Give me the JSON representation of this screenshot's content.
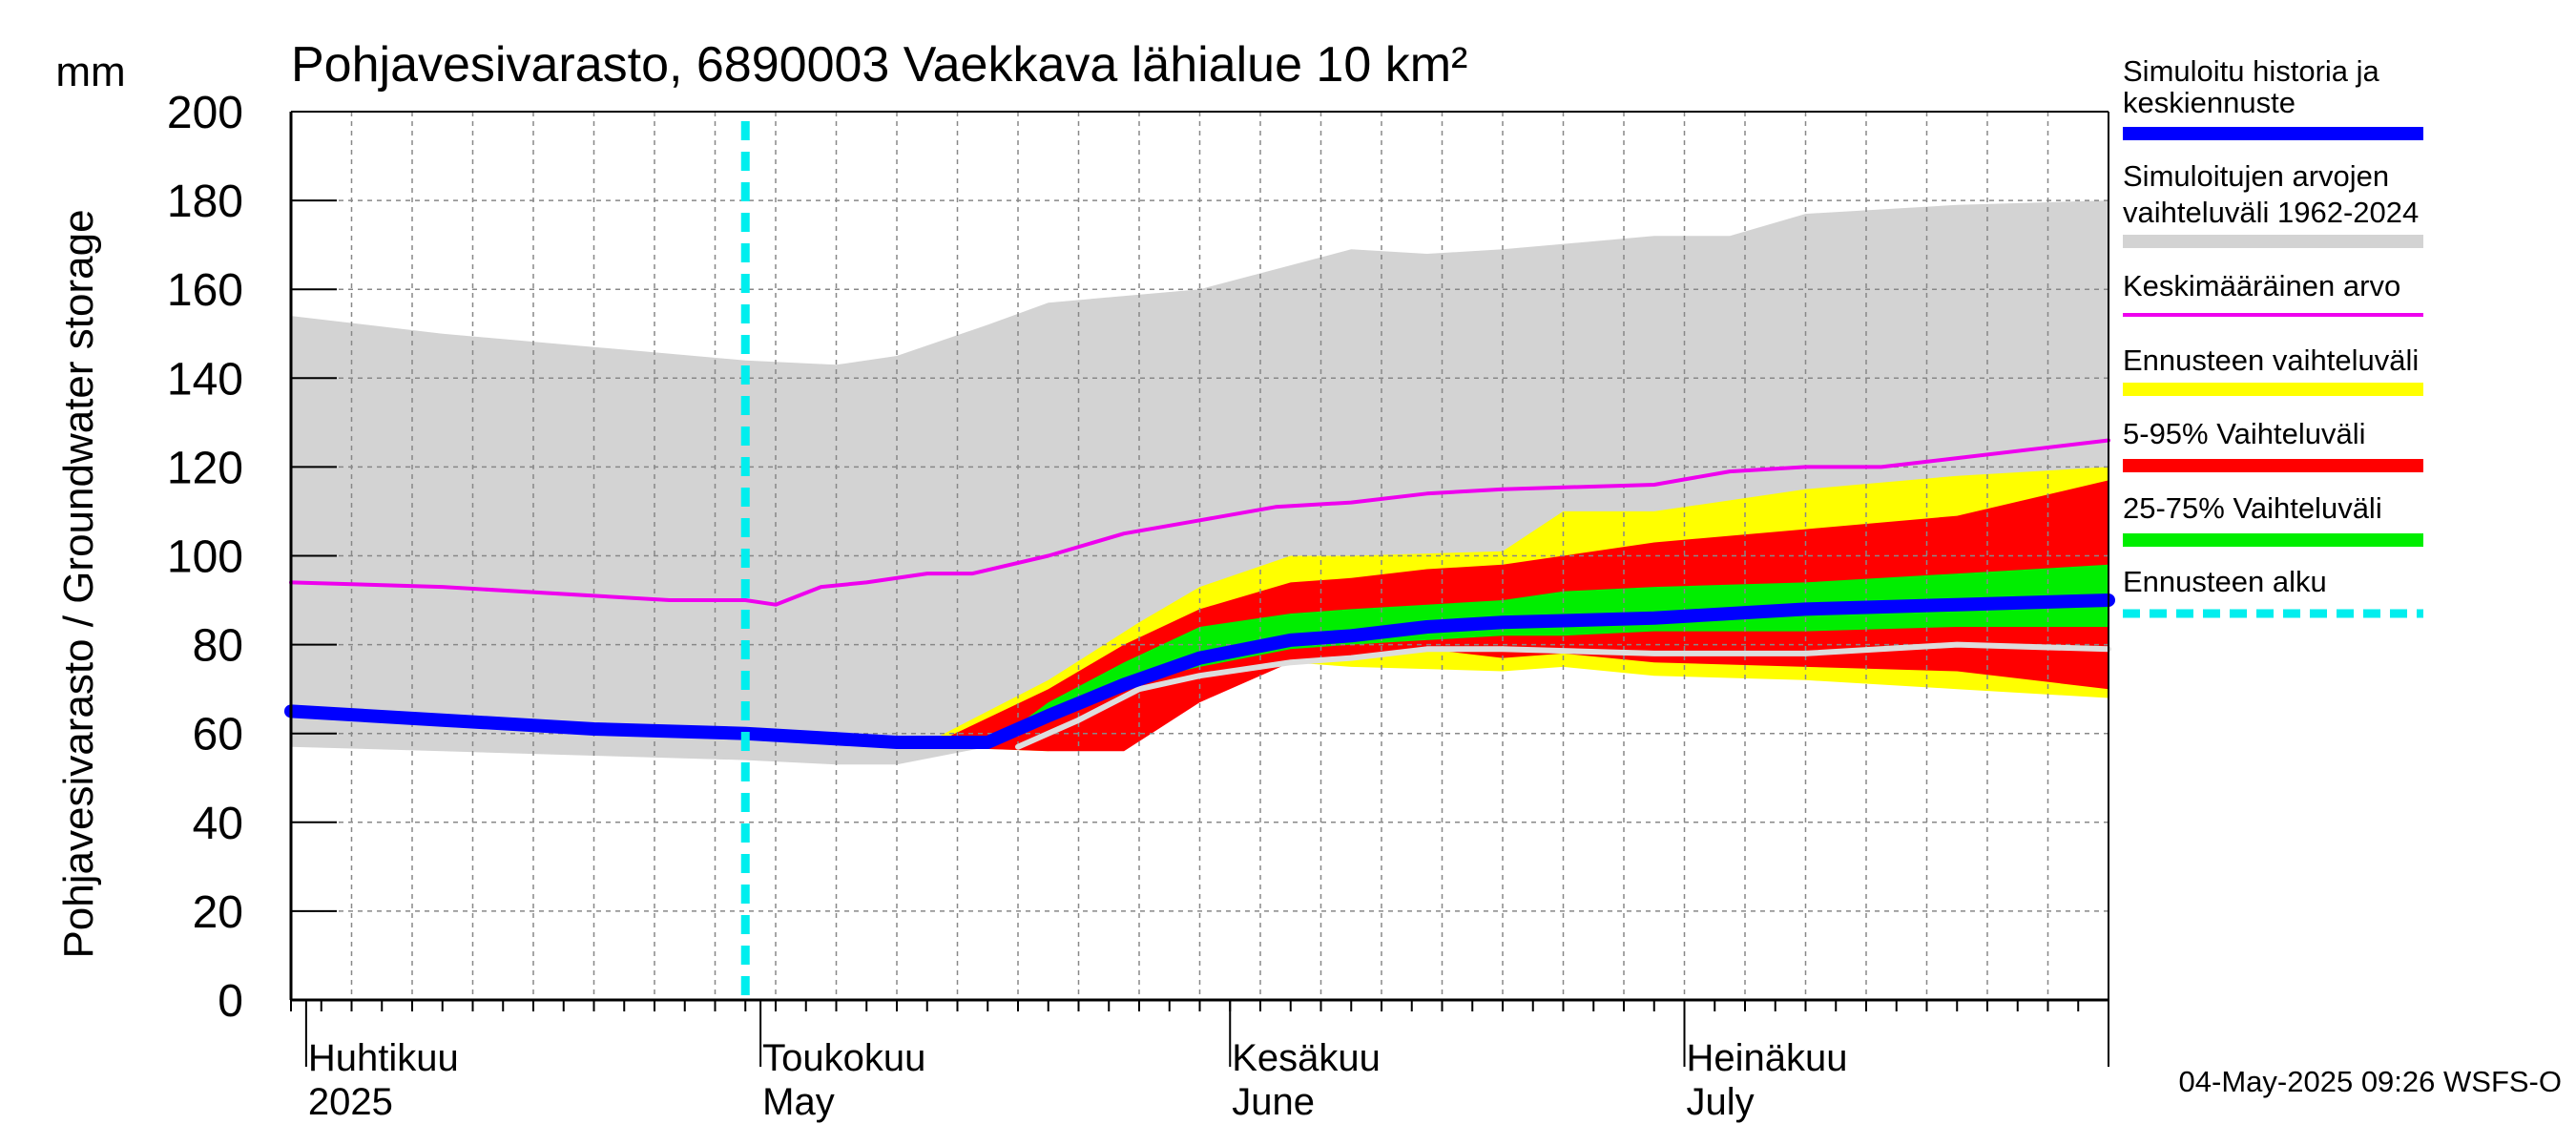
{
  "chart_data": {
    "type": "area",
    "title": "Pohjavesivarasto, 6890003 Vaekkava lähialue 10 km²",
    "unit_label": "mm",
    "ylabel": "Pohjavesivarasto / Groundwater storage",
    "ylim": [
      0,
      200
    ],
    "y_ticks": [
      "0",
      "20",
      "40",
      "60",
      "80",
      "100",
      "120",
      "140",
      "160",
      "180",
      "200"
    ],
    "x_range_days": [
      0,
      120
    ],
    "x_axis_note": "day 0 = 2025-03-31, day 120 = 2025-07-29",
    "months": [
      {
        "label_fi": "Huhtikuu",
        "label_en": "2025",
        "day": 1
      },
      {
        "label_fi": "Toukokuu",
        "label_en": "May",
        "day": 31
      },
      {
        "label_fi": "Kesäkuu",
        "label_en": "June",
        "day": 62
      },
      {
        "label_fi": "Heinäkuu",
        "label_en": "July",
        "day": 92
      }
    ],
    "forecast_start_day": 30,
    "series": [
      {
        "name": "Simuloitujen arvojen vaihteluväli 1962-2024",
        "kind": "band",
        "color": "#d3d3d3",
        "x": [
          0,
          10,
          20,
          30,
          36,
          40,
          46,
          50,
          60,
          70,
          75,
          80,
          90,
          95,
          100,
          110,
          120
        ],
        "lower": [
          57,
          56,
          55,
          54,
          53,
          53,
          57,
          68,
          76,
          77,
          78,
          78,
          77,
          77,
          77,
          76,
          75
        ],
        "upper": [
          154,
          150,
          147,
          144,
          143,
          145,
          152,
          157,
          160,
          169,
          168,
          169,
          172,
          172,
          177,
          179,
          180
        ]
      },
      {
        "name": "Ennusteen vaihteluväli",
        "kind": "band",
        "color": "#ffff00",
        "x": [
          42,
          50,
          56,
          60,
          66,
          70,
          80,
          84,
          90,
          100,
          110,
          120
        ],
        "lower": [
          57,
          56,
          65,
          72,
          76,
          75,
          74,
          75,
          73,
          72,
          70,
          68
        ],
        "upper": [
          58,
          72,
          85,
          93,
          100,
          100,
          101,
          110,
          110,
          115,
          118,
          120
        ]
      },
      {
        "name": "5-95% Vaihteluväli",
        "kind": "band",
        "color": "#ff0000",
        "x": [
          42,
          50,
          55,
          60,
          66,
          70,
          75,
          80,
          84,
          90,
          100,
          110,
          120
        ],
        "lower": [
          57,
          56,
          56,
          67,
          76,
          77,
          79,
          77,
          78,
          76,
          75,
          74,
          70
        ],
        "upper": [
          57,
          70,
          80,
          88,
          94,
          95,
          97,
          98,
          100,
          103,
          106,
          109,
          117
        ]
      },
      {
        "name": "25-75% Vaihteluväli",
        "kind": "band",
        "color": "#00ee00",
        "x": [
          46,
          50,
          55,
          60,
          66,
          70,
          75,
          80,
          84,
          90,
          100,
          110,
          120
        ],
        "lower": [
          57,
          63,
          71,
          75,
          79,
          80,
          81,
          82,
          82,
          83,
          83,
          84,
          84
        ],
        "upper": [
          57,
          67,
          76,
          84,
          87,
          88,
          89,
          90,
          92,
          93,
          94,
          96,
          98
        ]
      },
      {
        "name": "Keskimääräinen arvo",
        "kind": "line",
        "color": "#ee00ee",
        "x": [
          0,
          10,
          20,
          25,
          30,
          32,
          35,
          38,
          42,
          45,
          50,
          55,
          60,
          65,
          70,
          75,
          80,
          90,
          95,
          100,
          105,
          110,
          115,
          120
        ],
        "values": [
          94,
          93,
          91,
          90,
          90,
          89,
          93,
          94,
          96,
          96,
          100,
          105,
          108,
          111,
          112,
          114,
          115,
          116,
          119,
          120,
          120,
          122,
          124,
          126
        ]
      },
      {
        "name": "Median (white)",
        "kind": "line",
        "color": "#dddddd",
        "x": [
          48,
          52,
          56,
          60,
          66,
          70,
          75,
          80,
          90,
          100,
          110,
          120
        ],
        "values": [
          57,
          63,
          70,
          73,
          76,
          77,
          79,
          79,
          78,
          78,
          80,
          79
        ]
      },
      {
        "name": "Simuloitu historia ja keskiennuste",
        "kind": "line",
        "color": "#0000ff",
        "x": [
          0,
          10,
          20,
          30,
          40,
          46,
          50,
          55,
          60,
          66,
          70,
          75,
          80,
          90,
          100,
          110,
          120
        ],
        "values": [
          65,
          63,
          61,
          60,
          58,
          58,
          64,
          71,
          77,
          81,
          82,
          84,
          85,
          86,
          88,
          89,
          90
        ]
      }
    ]
  },
  "legend": {
    "items": [
      {
        "label": "Simuloitu historia ja keskiennuste",
        "line1": "Simuloitu historia ja",
        "line2": "keskiennuste",
        "color": "#0000ff",
        "style": "solid"
      },
      {
        "label": "Simuloitujen arvojen vaihteluväli 1962-2024",
        "line1": "Simuloitujen arvojen",
        "line2": "vaihteluväli 1962-2024",
        "color": "#d3d3d3",
        "style": "solid"
      },
      {
        "label": "Keskimääräinen arvo",
        "line1": "Keskimääräinen arvo",
        "line2": "",
        "color": "#ee00ee",
        "style": "thin"
      },
      {
        "label": "Ennusteen vaihteluväli",
        "line1": "Ennusteen vaihteluväli",
        "line2": "",
        "color": "#ffff00",
        "style": "solid"
      },
      {
        "label": "5-95% Vaihteluväli",
        "line1": "5-95% Vaihteluväli",
        "line2": "",
        "color": "#ff0000",
        "style": "solid"
      },
      {
        "label": "25-75% Vaihteluväli",
        "line1": "25-75% Vaihteluväli",
        "line2": "",
        "color": "#00ee00",
        "style": "solid"
      },
      {
        "label": "Ennusteen alku",
        "line1": "Ennusteen alku",
        "line2": "",
        "color": "#00eeee",
        "style": "dashed"
      }
    ]
  },
  "footer": {
    "timestamp": "04-May-2025 09:26 WSFS-O"
  }
}
